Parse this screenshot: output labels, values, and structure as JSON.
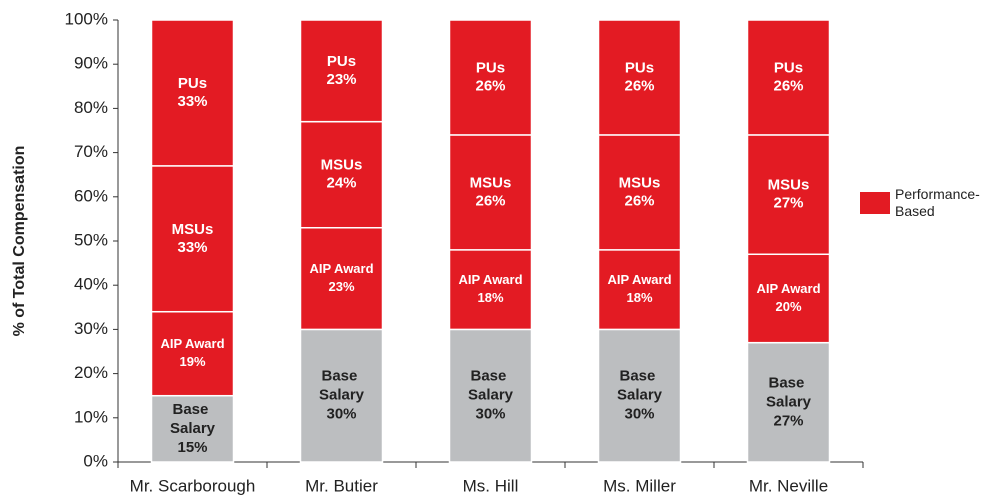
{
  "chart_data": {
    "type": "stacked_bar",
    "y_label": "% of Total Compensation",
    "categories": [
      "Mr. Scarborough",
      "Mr. Butier",
      "Ms. Hill",
      "Ms. Miller",
      "Mr. Neville"
    ],
    "series": [
      {
        "name": "Base Salary",
        "color": "#bcbec0",
        "values": [
          15,
          30,
          30,
          30,
          27
        ],
        "value_labels": [
          "15%",
          "30%",
          "30%",
          "30%",
          "27%"
        ]
      },
      {
        "name": "AIP Award",
        "color": "#e31b23",
        "values": [
          19,
          23,
          18,
          18,
          20
        ],
        "value_labels": [
          "19%",
          "23%",
          "18%",
          "18%",
          "20%"
        ]
      },
      {
        "name": "MSUs",
        "color": "#e31b23",
        "values": [
          33,
          24,
          26,
          26,
          27
        ],
        "value_labels": [
          "33%",
          "24%",
          "26%",
          "26%",
          "27%"
        ]
      },
      {
        "name": "PUs",
        "color": "#e31b23",
        "values": [
          33,
          23,
          26,
          26,
          26
        ],
        "value_labels": [
          "33%",
          "23%",
          "26%",
          "26%",
          "26%"
        ]
      }
    ],
    "legend": [
      {
        "label": "Performance-Based",
        "color": "#e31b23"
      }
    ],
    "ylim": [
      0,
      100
    ],
    "yticks": [
      {
        "value": 0,
        "label": "0%"
      },
      {
        "value": 10,
        "label": "10%"
      },
      {
        "value": 20,
        "label": "20%"
      },
      {
        "value": 30,
        "label": "30%"
      },
      {
        "value": 40,
        "label": "40%"
      },
      {
        "value": 50,
        "label": "50%"
      },
      {
        "value": 60,
        "label": "60%"
      },
      {
        "value": 70,
        "label": "70%"
      },
      {
        "value": 80,
        "label": "80%"
      },
      {
        "value": 90,
        "label": "90%"
      },
      {
        "value": 100,
        "label": "100%"
      }
    ]
  }
}
